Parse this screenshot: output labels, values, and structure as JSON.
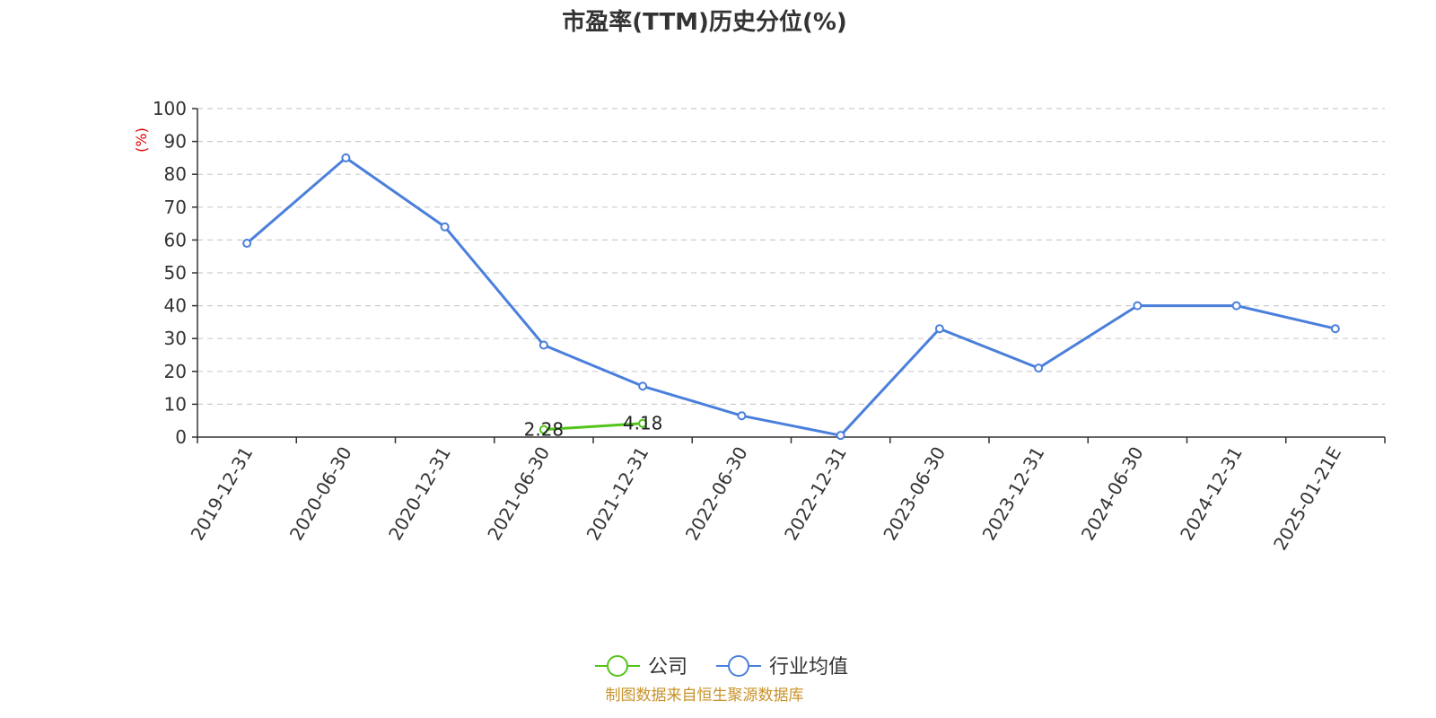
{
  "chart_data": {
    "type": "line",
    "title": "市盈率(TTM)历史分位(%)",
    "ylabel": "(%)",
    "ylim": [
      0,
      100
    ],
    "yticks": [
      0,
      10,
      20,
      30,
      40,
      50,
      60,
      70,
      80,
      90,
      100
    ],
    "grid": true,
    "legend_position": "bottom-center",
    "categories": [
      "2019-12-31",
      "2020-06-30",
      "2020-12-31",
      "2021-06-30",
      "2021-12-31",
      "2022-06-30",
      "2022-12-31",
      "2023-06-30",
      "2023-12-31",
      "2024-06-30",
      "2024-12-31",
      "2025-01-21E"
    ],
    "series": [
      {
        "name": "公司",
        "color": "#52c41a",
        "values": [
          null,
          null,
          null,
          2.28,
          4.18,
          null,
          null,
          null,
          null,
          null,
          null,
          null
        ],
        "labels": [
          "",
          "",
          "",
          "2.28",
          "4.18",
          "",
          "",
          "",
          "",
          "",
          "",
          ""
        ]
      },
      {
        "name": "行业均值",
        "color": "#4a7fdb",
        "values": [
          59,
          85,
          64,
          28,
          15.5,
          6.5,
          0.5,
          33,
          21,
          40,
          40,
          33
        ]
      }
    ]
  },
  "colors": {
    "axis": "#333333",
    "grid": "#cccccc",
    "ylabel": "#e00000",
    "source": "#c8922a"
  },
  "source_text": "制图数据来自恒生聚源数据库"
}
